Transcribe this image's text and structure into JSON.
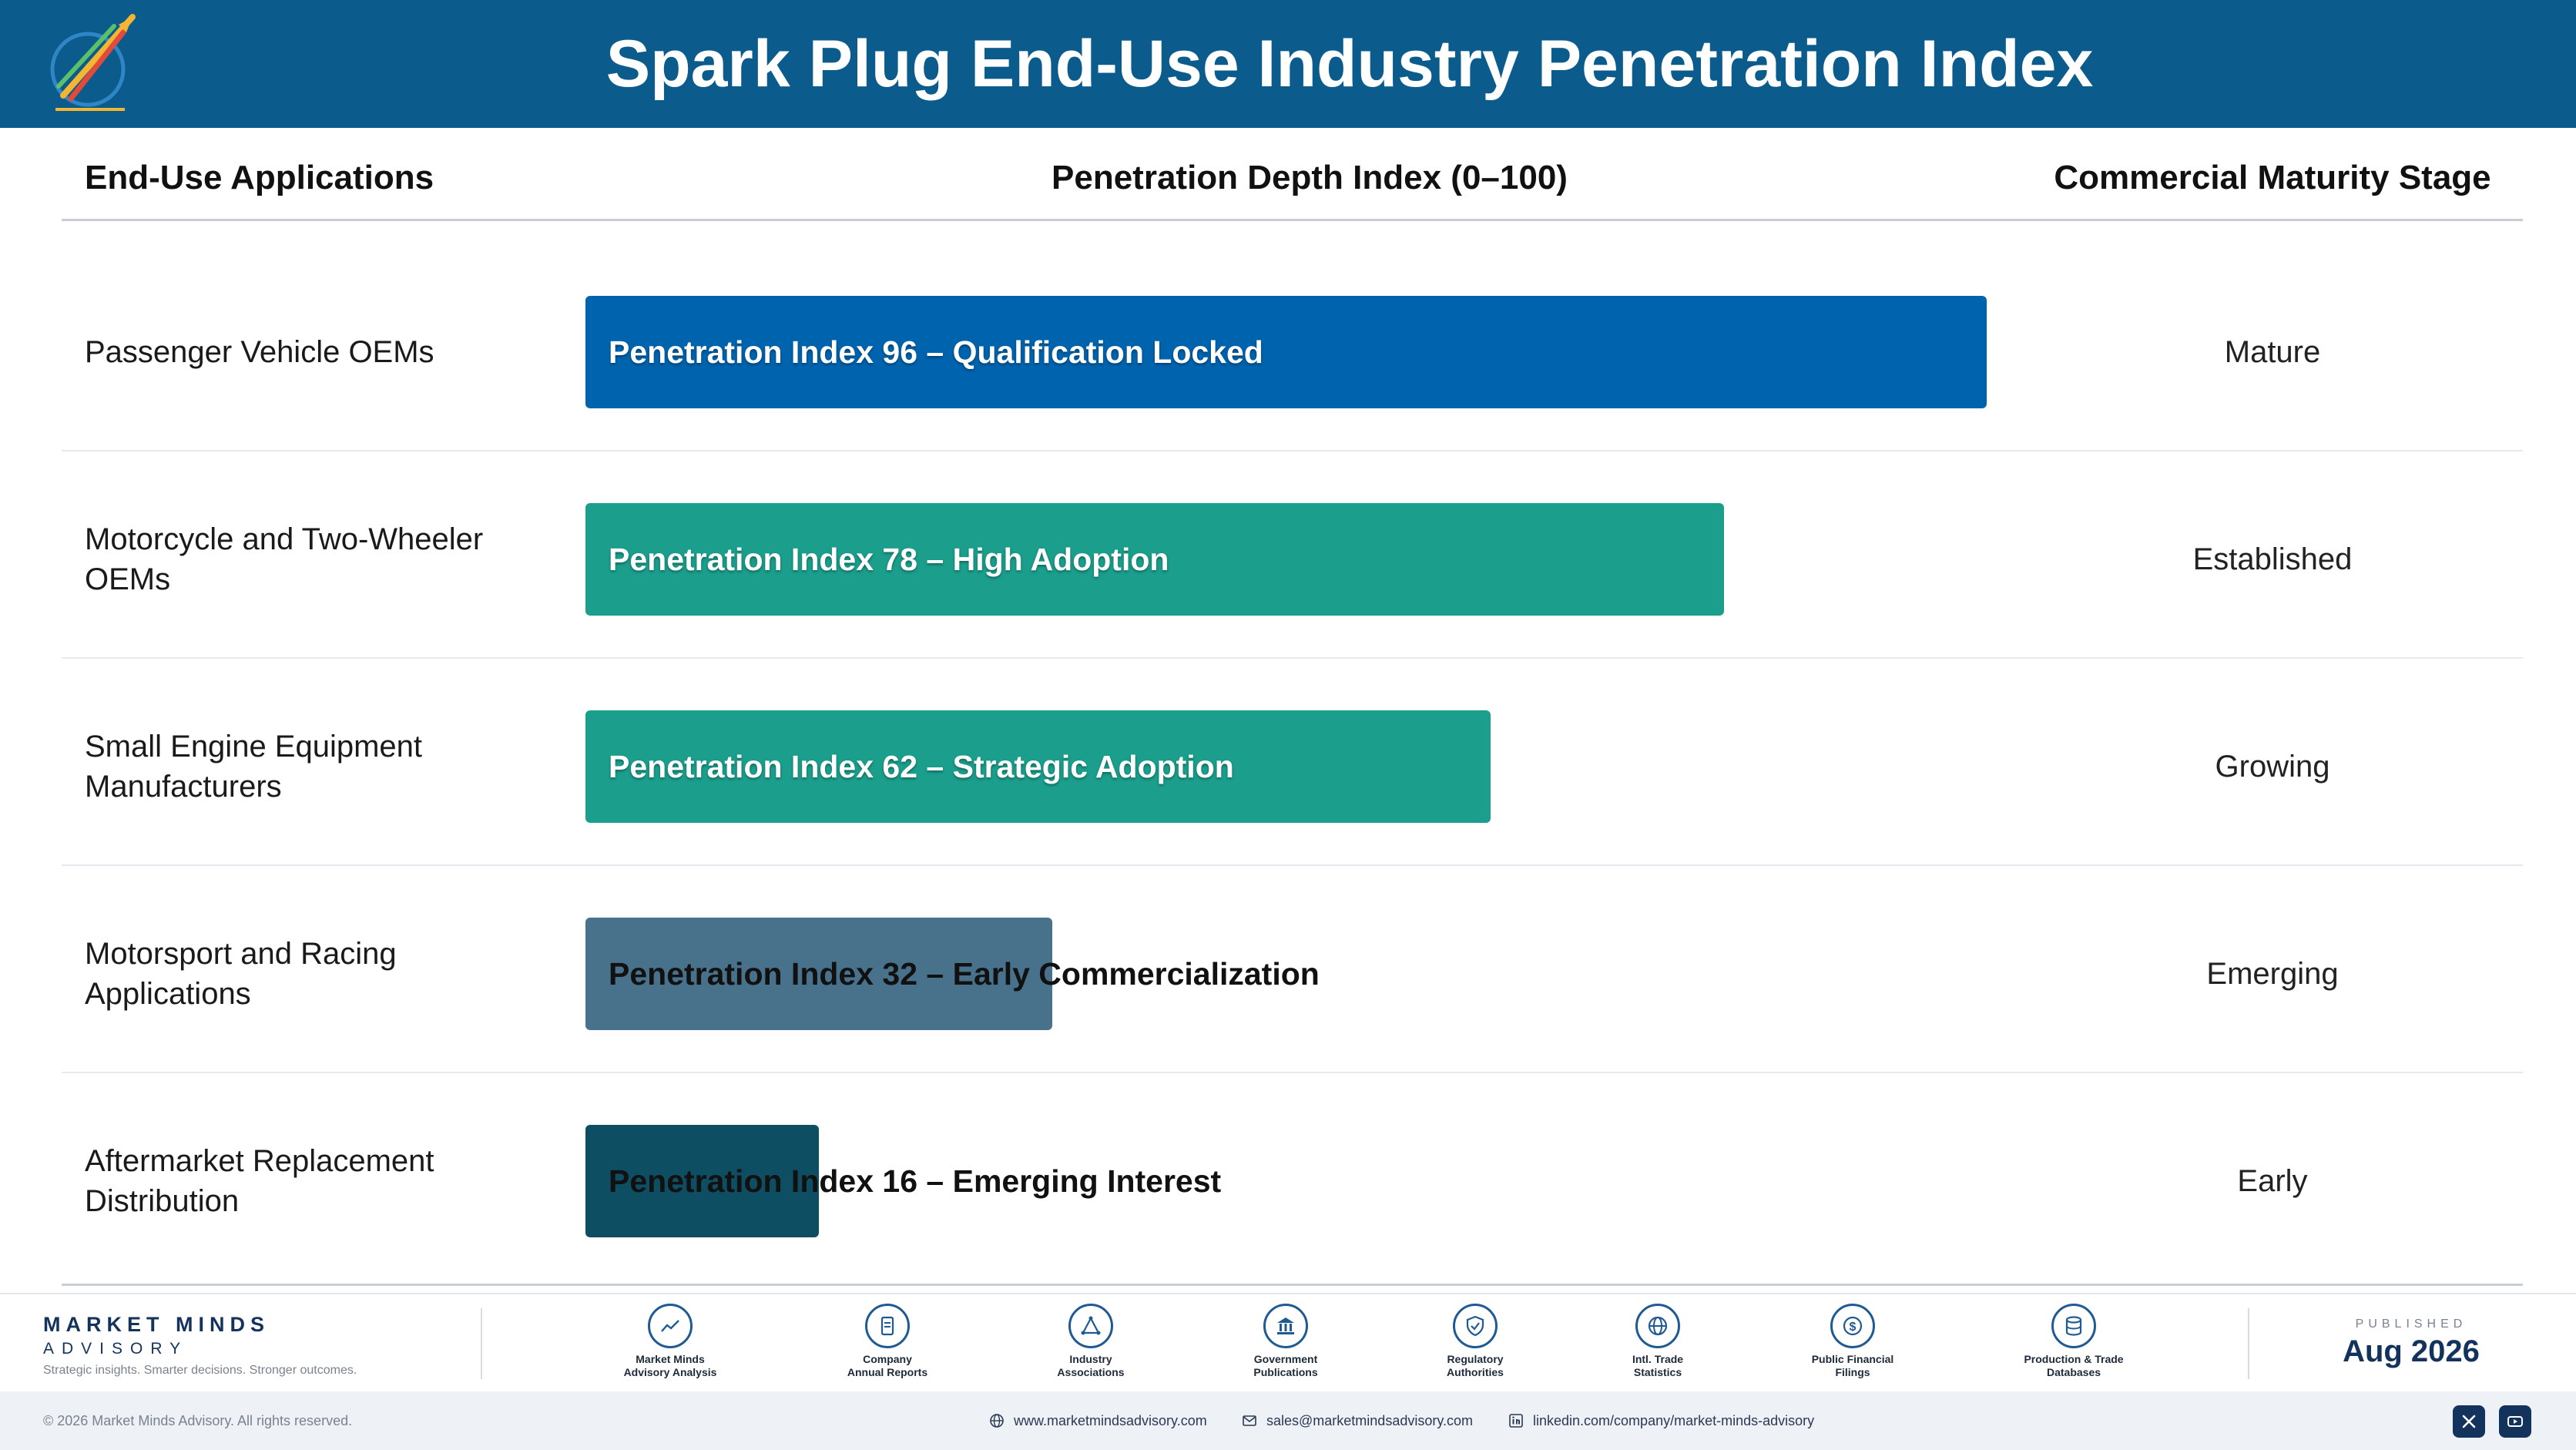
{
  "header": {
    "title": "Spark Plug End-Use Industry Penetration Index"
  },
  "columns": {
    "applications": "End-Use Applications",
    "index": "Penetration Depth Index (0–100)",
    "stage": "Commercial Maturity Stage"
  },
  "chart_data": {
    "type": "bar",
    "orientation": "horizontal",
    "xlim": [
      0,
      100
    ],
    "categories": [
      "Passenger Vehicle OEMs",
      "Motorcycle and Two-Wheeler OEMs",
      "Small Engine Equipment Manufacturers",
      "Motorsport and Racing Applications",
      "Aftermarket Replacement Distribution"
    ],
    "values": [
      96,
      78,
      62,
      32,
      16
    ],
    "bar_labels": [
      "Penetration Index 96 – Qualification Locked",
      "Penetration Index 78 – High Adoption",
      "Penetration Index 62 – Strategic Adoption",
      "Penetration Index 32 – Early Commercialization",
      "Penetration Index 16 – Emerging Interest"
    ],
    "maturity_stages": [
      "Mature",
      "Established",
      "Growing",
      "Emerging",
      "Early"
    ],
    "colors": [
      "#0063ad",
      "#1b9e8c",
      "#1b9e8c",
      "#48728c",
      "#0e4e63"
    ]
  },
  "footer": {
    "brand_name": "MARKET MINDS",
    "brand_sub": "ADVISORY",
    "brand_tagline": "Strategic insights. Smarter decisions. Stronger outcomes.",
    "sources": [
      {
        "icon": "trend-chart-icon",
        "line1": "Market Minds",
        "line2": "Advisory Analysis"
      },
      {
        "icon": "document-icon",
        "line1": "Company",
        "line2": "Annual Reports"
      },
      {
        "icon": "network-icon",
        "line1": "Industry",
        "line2": "Associations"
      },
      {
        "icon": "government-building-icon",
        "line1": "Government",
        "line2": "Publications"
      },
      {
        "icon": "shield-check-icon",
        "line1": "Regulatory",
        "line2": "Authorities"
      },
      {
        "icon": "globe-icon",
        "line1": "Intl. Trade",
        "line2": "Statistics"
      },
      {
        "icon": "dollar-coin-icon",
        "line1": "Public Financial",
        "line2": "Filings"
      },
      {
        "icon": "database-icon",
        "line1": "Production & Trade",
        "line2": "Databases"
      }
    ],
    "published_label": "PUBLISHED",
    "published_date": "Aug 2026"
  },
  "bottom_bar": {
    "copyright": "© 2026 Market Minds Advisory. All rights reserved.",
    "website": "www.marketmindsadvisory.com",
    "email": "sales@marketmindsadvisory.com",
    "linkedin": "linkedin.com/company/market-minds-advisory",
    "social_icons": [
      "x-icon",
      "youtube-icon"
    ]
  }
}
